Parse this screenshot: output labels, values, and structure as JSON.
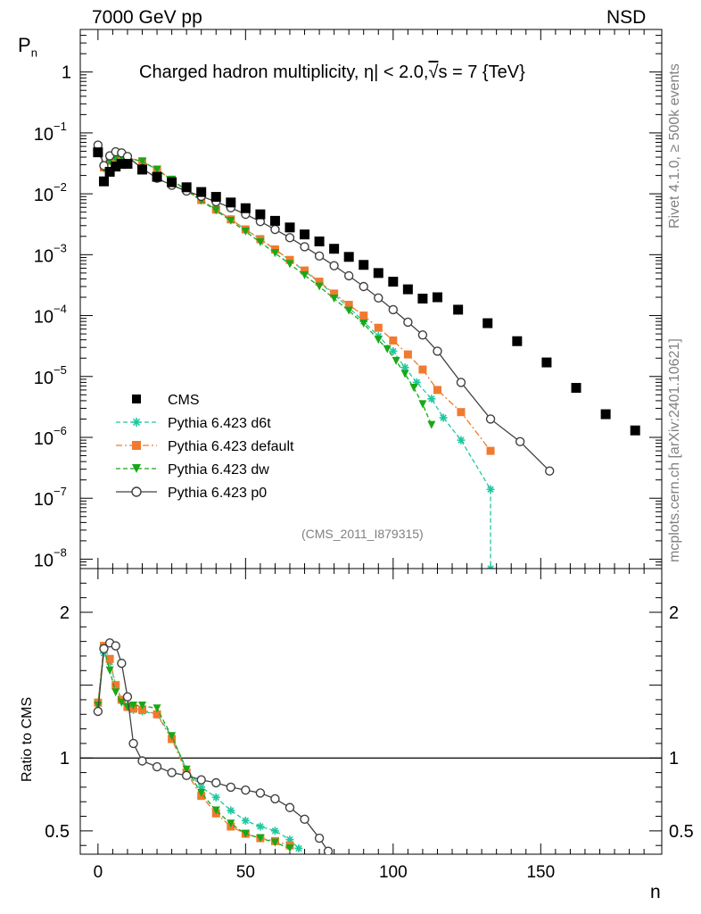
{
  "header": {
    "left": "7000 GeV pp",
    "right": "NSD"
  },
  "side_labels": {
    "top": "Rivet 4.1.0, ≥ 500k events",
    "bottom": "mcplots.cern.ch [arXiv:2401.10621]"
  },
  "chart_data": [
    {
      "type": "scatter",
      "title": "Charged hadron multiplicity, |η| < 2.0, √s = 7 {TeV}",
      "title_parts": {
        "prefix": "Charged hadron multiplicity,",
        "eta": "η",
        "eta_cut": "| < 2.0,",
        "sqrt": "√",
        "energy": "s = 7 {TeV}"
      },
      "xlabel": "n",
      "ylabel": "P",
      "ylabel_sub": "n",
      "yscale": "log",
      "xlim": [
        -6,
        191
      ],
      "ylim": [
        7e-09,
        5
      ],
      "yticks": [
        {
          "value": 1,
          "label": "1"
        },
        {
          "value": 0.1,
          "base": "10",
          "exp": "−1"
        },
        {
          "value": 0.01,
          "base": "10",
          "exp": "−2"
        },
        {
          "value": 0.001,
          "base": "10",
          "exp": "−3"
        },
        {
          "value": 0.0001,
          "base": "10",
          "exp": "−4"
        },
        {
          "value": 1e-05,
          "base": "10",
          "exp": "−5"
        },
        {
          "value": 1e-06,
          "base": "10",
          "exp": "−6"
        },
        {
          "value": 1e-07,
          "base": "10",
          "exp": "−7"
        },
        {
          "value": 1e-08,
          "base": "10",
          "exp": "−8"
        }
      ],
      "watermark": "(CMS_2011_I879315)",
      "legend": [
        {
          "label": "CMS",
          "color": "#000000",
          "marker": "square",
          "line": "none"
        },
        {
          "label": "Pythia 6.423 d6t",
          "color": "#1ec8a0",
          "marker": "star",
          "line": "dashed"
        },
        {
          "label": "Pythia 6.423 default",
          "color": "#f07a30",
          "marker": "square",
          "line": "dashdot"
        },
        {
          "label": "Pythia 6.423 dw",
          "color": "#18a818",
          "marker": "triangle-down",
          "line": "dashed"
        },
        {
          "label": "Pythia 6.423 p0",
          "color": "#404040",
          "marker": "open-circle",
          "line": "solid"
        }
      ],
      "series": [
        {
          "name": "CMS",
          "x": [
            0,
            2,
            4,
            6,
            8,
            10,
            15,
            20,
            25,
            30,
            35,
            40,
            45,
            50,
            55,
            60,
            65,
            70,
            75,
            80,
            85,
            90,
            95,
            100,
            105,
            110,
            115,
            122,
            132,
            142,
            152,
            162,
            172,
            182
          ],
          "y": [
            0.048,
            0.016,
            0.023,
            0.028,
            0.031,
            0.031,
            0.025,
            0.019,
            0.0155,
            0.0128,
            0.0107,
            0.0089,
            0.0072,
            0.0058,
            0.0046,
            0.0036,
            0.0028,
            0.00215,
            0.00165,
            0.00125,
            0.00092,
            0.00068,
            0.0005,
            0.00036,
            0.00027,
            0.00019,
            0.0002,
            0.000125,
            7.5e-05,
            3.8e-05,
            1.7e-05,
            6.5e-06,
            2.4e-06,
            1.3e-06
          ]
        },
        {
          "name": "Pythia 6.423 d6t",
          "x": [
            0,
            2,
            4,
            6,
            8,
            10,
            15,
            20,
            25,
            30,
            35,
            40,
            45,
            50,
            55,
            60,
            65,
            70,
            75,
            80,
            85,
            90,
            95,
            100,
            104,
            108,
            113,
            117,
            123,
            133,
            133
          ],
          "y": [
            0.06,
            0.027,
            0.035,
            0.038,
            0.039,
            0.039,
            0.034,
            0.025,
            0.017,
            0.0115,
            0.0079,
            0.0055,
            0.0038,
            0.0026,
            0.0018,
            0.00122,
            0.00082,
            0.00054,
            0.00035,
            0.00022,
            0.000135,
            8e-05,
            4.6e-05,
            2.6e-05,
            1.4e-05,
            8e-06,
            4.3e-06,
            2.1e-06,
            9e-07,
            1.4e-07,
            7e-09
          ]
        },
        {
          "name": "Pythia 6.423 default",
          "x": [
            0,
            2,
            4,
            6,
            8,
            10,
            15,
            20,
            25,
            30,
            35,
            40,
            45,
            50,
            55,
            60,
            65,
            70,
            75,
            80,
            85,
            90,
            95,
            100,
            105,
            110,
            115,
            123,
            133
          ],
          "y": [
            0.06,
            0.027,
            0.035,
            0.038,
            0.039,
            0.039,
            0.034,
            0.025,
            0.017,
            0.0115,
            0.0079,
            0.0055,
            0.0038,
            0.0026,
            0.0018,
            0.00122,
            0.00082,
            0.00055,
            0.00036,
            0.00023,
            0.00015,
            0.0001,
            6.3e-05,
            3.9e-05,
            2.3e-05,
            1.3e-05,
            6e-06,
            2.6e-06,
            6e-07
          ]
        },
        {
          "name": "Pythia 6.423 dw",
          "x": [
            0,
            2,
            4,
            6,
            8,
            10,
            15,
            20,
            25,
            30,
            35,
            40,
            45,
            50,
            55,
            60,
            65,
            70,
            75,
            80,
            85,
            90,
            95,
            98,
            101,
            104,
            107,
            110,
            113
          ],
          "y": [
            0.058,
            0.026,
            0.034,
            0.038,
            0.039,
            0.039,
            0.034,
            0.025,
            0.017,
            0.0113,
            0.0077,
            0.0053,
            0.0036,
            0.0024,
            0.0016,
            0.00106,
            0.0007,
            0.00046,
            0.0003,
            0.00019,
            0.00012,
            7.4e-05,
            4e-05,
            2.8e-05,
            1.8e-05,
            1.1e-05,
            6.5e-06,
            3.5e-06,
            1.6e-06
          ]
        },
        {
          "name": "Pythia 6.423 p0",
          "x": [
            0,
            2,
            4,
            6,
            8,
            10,
            15,
            20,
            25,
            30,
            35,
            40,
            45,
            50,
            55,
            60,
            65,
            70,
            75,
            80,
            85,
            90,
            95,
            100,
            105,
            110,
            115,
            123,
            133,
            143,
            153
          ],
          "y": [
            0.063,
            0.029,
            0.042,
            0.049,
            0.047,
            0.041,
            0.026,
            0.018,
            0.0138,
            0.0111,
            0.0091,
            0.0074,
            0.0059,
            0.0046,
            0.0035,
            0.0026,
            0.0019,
            0.00135,
            0.00095,
            0.00066,
            0.00045,
            0.0003,
            0.000195,
            0.000125,
            7.8e-05,
            4.8e-05,
            2.6e-05,
            8e-06,
            2e-06,
            8.5e-07,
            2.8e-07
          ]
        }
      ]
    },
    {
      "type": "line",
      "ylabel": "Ratio to CMS",
      "xlabel": "n",
      "xlim": [
        -6,
        191
      ],
      "ylim": [
        0.34,
        2.3
      ],
      "yticks": [
        {
          "value": 2,
          "label": "2"
        },
        {
          "value": 1,
          "label": "1"
        },
        {
          "value": 0.5,
          "label": "0.5"
        }
      ],
      "xticks": [
        {
          "value": 0,
          "label": "0"
        },
        {
          "value": 50,
          "label": "50"
        },
        {
          "value": 100,
          "label": "100"
        },
        {
          "value": 150,
          "label": "150"
        }
      ],
      "series": [
        {
          "name": "Pythia 6.423 d6t",
          "x": [
            0,
            2,
            4,
            6,
            8,
            10,
            12,
            15,
            20,
            25,
            30,
            35,
            40,
            45,
            50,
            55,
            60,
            65,
            68
          ],
          "y": [
            1.38,
            1.72,
            1.66,
            1.5,
            1.4,
            1.36,
            1.33,
            1.32,
            1.3,
            1.15,
            0.92,
            0.8,
            0.73,
            0.64,
            0.57,
            0.53,
            0.5,
            0.44,
            0.38
          ]
        },
        {
          "name": "Pythia 6.423 default",
          "x": [
            0,
            2,
            4,
            6,
            8,
            10,
            12,
            15,
            20,
            25,
            30,
            35,
            40,
            45,
            50,
            55,
            60,
            65
          ],
          "y": [
            1.38,
            1.77,
            1.68,
            1.5,
            1.4,
            1.35,
            1.34,
            1.33,
            1.3,
            1.13,
            0.9,
            0.74,
            0.62,
            0.53,
            0.48,
            0.45,
            0.43,
            0.4
          ]
        },
        {
          "name": "Pythia 6.423 dw",
          "x": [
            0,
            2,
            4,
            6,
            8,
            10,
            12,
            15,
            20,
            25,
            30,
            35,
            40,
            45,
            50,
            55,
            60,
            65
          ],
          "y": [
            1.36,
            1.75,
            1.6,
            1.45,
            1.38,
            1.35,
            1.36,
            1.36,
            1.34,
            1.15,
            0.92,
            0.76,
            0.64,
            0.55,
            0.48,
            0.45,
            0.42,
            0.38
          ]
        },
        {
          "name": "Pythia 6.423 p0",
          "x": [
            0,
            2,
            4,
            6,
            8,
            10,
            12,
            15,
            20,
            25,
            30,
            35,
            40,
            45,
            50,
            55,
            60,
            65,
            70,
            75,
            78
          ],
          "y": [
            1.32,
            1.75,
            1.79,
            1.77,
            1.65,
            1.42,
            1.1,
            0.98,
            0.94,
            0.9,
            0.88,
            0.85,
            0.83,
            0.8,
            0.78,
            0.76,
            0.72,
            0.66,
            0.58,
            0.45,
            0.36
          ]
        }
      ]
    }
  ]
}
